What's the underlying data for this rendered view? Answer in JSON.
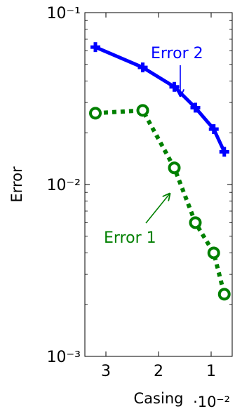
{
  "chart_data": {
    "type": "line",
    "xlabel": "Casing",
    "ylabel": "Error",
    "x_scale_label": "·10⁻²",
    "x_reversed": true,
    "y_log": true,
    "ylim": [
      0.001,
      0.1
    ],
    "y_ticks": [
      {
        "value": 0.1,
        "label": "10⁻¹"
      },
      {
        "value": 0.01,
        "label": "10⁻²"
      },
      {
        "value": 0.001,
        "label": "10⁻³"
      }
    ],
    "x_ticks": [
      {
        "value": 3,
        "label": "3"
      },
      {
        "value": 2,
        "label": "2"
      },
      {
        "value": 1,
        "label": "1"
      }
    ],
    "grid": false,
    "series": [
      {
        "name": "Error 2",
        "color": "#0000ff",
        "marker": "plus",
        "line_style": "solid",
        "x": [
          3.2,
          2.3,
          1.7,
          1.3,
          0.95,
          0.75
        ],
        "y": [
          0.063,
          0.048,
          0.037,
          0.028,
          0.021,
          0.0155
        ]
      },
      {
        "name": "Error 1",
        "color": "#008000",
        "marker": "circle",
        "line_style": "dotted",
        "x": [
          3.2,
          2.3,
          1.7,
          1.3,
          0.95,
          0.75
        ],
        "y": [
          0.026,
          0.027,
          0.0125,
          0.006,
          0.004,
          0.0023
        ]
      }
    ],
    "annotations": [
      {
        "text": "Error 2",
        "series": "Error 2",
        "color": "#0000ff"
      },
      {
        "text": "Error 1",
        "series": "Error 1",
        "color": "#008000"
      }
    ]
  }
}
